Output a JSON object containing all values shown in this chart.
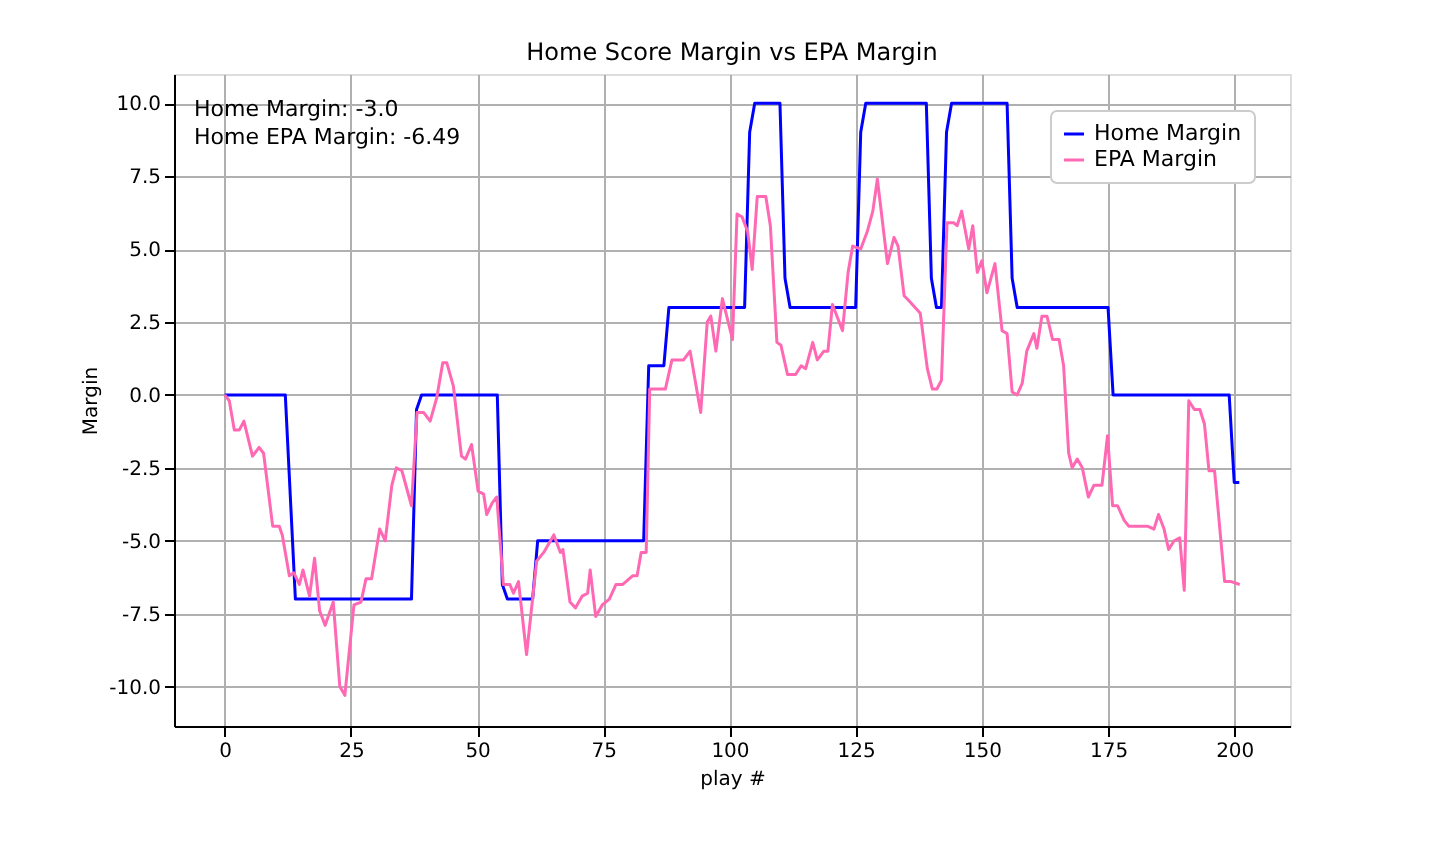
{
  "chart_data": {
    "type": "line",
    "title": "Home Score Margin vs EPA Margin",
    "xlabel": "play #",
    "ylabel": "Margin",
    "annotations": [
      "Home Margin: -3.0",
      "Home EPA Margin: -6.49"
    ],
    "xlim": [
      -10.05,
      211.05
    ],
    "ylim": [
      -11.35,
      11.0
    ],
    "xticks": [
      0,
      25,
      50,
      75,
      100,
      125,
      150,
      175,
      200
    ],
    "yticks": [
      {
        "value": -10,
        "label": "-10.0"
      },
      -7.5,
      {
        "value": -5,
        "label": "-5.0"
      },
      -2.5,
      {
        "value": 0,
        "label": "0.0"
      },
      2.5,
      {
        "value": 5,
        "label": "5.0"
      },
      7.5,
      {
        "value": 10,
        "label": "10.0"
      }
    ],
    "grid": true,
    "legend": "top right",
    "line_style": "solid",
    "marker": "none",
    "series": [
      {
        "name": "Home Margin",
        "color": "#0000ff",
        "x": [
          0,
          12,
          14,
          37,
          38,
          39,
          54,
          55,
          56,
          61,
          62,
          83,
          84,
          87,
          88,
          103,
          104,
          105,
          110,
          111,
          112,
          125,
          126,
          127,
          139,
          140,
          141,
          142,
          143,
          144,
          155,
          156,
          157,
          175,
          176,
          199,
          200,
          201
        ],
        "values": [
          0,
          0,
          -7,
          -7,
          -0.5,
          0,
          0,
          -6.5,
          -7,
          -7,
          -5,
          -5,
          1,
          1,
          3,
          3,
          9,
          10,
          10,
          4,
          3,
          3,
          9,
          10,
          10,
          4,
          3,
          3,
          9,
          10,
          10,
          4,
          3,
          3,
          0,
          0,
          -3,
          -3
        ]
      },
      {
        "name": "EPA Margin",
        "color": "#ff69b4",
        "x": [
          0,
          0.9,
          1.9,
          2.9,
          3.8,
          5.5,
          6.8,
          7.7,
          9.5,
          10.8,
          11.4,
          12.8,
          13.7,
          14.8,
          15.5,
          16.8,
          17.8,
          18.8,
          19.9,
          21.5,
          22.8,
          23.8,
          25.6,
          27,
          28,
          29.1,
          30.7,
          31.8,
          33.1,
          34,
          35.1,
          37,
          38.1,
          39.4,
          40.7,
          42,
          43.2,
          44,
          45.3,
          46.9,
          47.7,
          48.9,
          50.2,
          51.3,
          51.9,
          53,
          53.9,
          55.2,
          56.5,
          57.2,
          58.2,
          59.8,
          61.8,
          63.2,
          65.2,
          66.5,
          67,
          68.4,
          69.5,
          70.8,
          71.9,
          72.4,
          73.5,
          74.8,
          76.2,
          77.5,
          78.8,
          80.8,
          81.7,
          82.5,
          83.5,
          84.2,
          87.3,
          88.6,
          90.9,
          92.2,
          94.3,
          95.6,
          96.3,
          97.3,
          98.6,
          100.6,
          101.5,
          102.5,
          103.6,
          104.5,
          105.5,
          107.2,
          108.1,
          109.4,
          110.2,
          111.5,
          113.1,
          114.2,
          115.1,
          116.5,
          117.4,
          118.7,
          119.5,
          120.4,
          122.4,
          123.5,
          124.4,
          126,
          127.3,
          128.4,
          129.3,
          131.3,
          132.6,
          133.4,
          134.6,
          135.7,
          137.8,
          139.2,
          140.2,
          141.1,
          142,
          143.1,
          144.4,
          145.1,
          146,
          147.4,
          148.2,
          149.1,
          150,
          151,
          152.6,
          154,
          155,
          156,
          157,
          158,
          158.9,
          160.3,
          160.9,
          161.9,
          162.9,
          164,
          165.3,
          166.2,
          167.2,
          167.9,
          168.9,
          169.9,
          171.1,
          172.2,
          173.8,
          174.9,
          175.9,
          176.9,
          178.2,
          179.1,
          180.8,
          182.8,
          184.1,
          185,
          186.1,
          187,
          188.1,
          189.2,
          190.1,
          191,
          192.1,
          193.2,
          194.1,
          195,
          196.1,
          198.1,
          199.4,
          201.1
        ],
        "values": [
          0,
          -0.2,
          -1.2,
          -1.2,
          -0.9,
          -2.1,
          -1.8,
          -2.0,
          -4.5,
          -4.5,
          -4.8,
          -6.2,
          -6.1,
          -6.5,
          -6.0,
          -6.9,
          -5.6,
          -7.4,
          -7.9,
          -7.1,
          -10.0,
          -10.3,
          -7.2,
          -7.1,
          -6.3,
          -6.3,
          -4.6,
          -5.0,
          -3.1,
          -2.5,
          -2.6,
          -3.8,
          -0.6,
          -0.6,
          -0.9,
          -0.1,
          1.1,
          1.1,
          0.3,
          -2.1,
          -2.2,
          -1.7,
          -3.3,
          -3.4,
          -4.1,
          -3.7,
          -3.5,
          -6.5,
          -6.5,
          -6.8,
          -6.4,
          -8.9,
          -5.7,
          -5.4,
          -4.8,
          -5.4,
          -5.3,
          -7.1,
          -7.3,
          -6.9,
          -6.8,
          -6.0,
          -7.6,
          -7.2,
          -7.0,
          -6.5,
          -6.5,
          -6.2,
          -6.2,
          -5.4,
          -5.4,
          0.2,
          0.2,
          1.2,
          1.2,
          1.5,
          -0.6,
          2.5,
          2.7,
          1.5,
          3.3,
          1.9,
          6.2,
          6.1,
          5.6,
          4.3,
          6.8,
          6.8,
          5.8,
          1.8,
          1.7,
          0.7,
          0.7,
          1.0,
          0.9,
          1.8,
          1.2,
          1.5,
          1.5,
          3.1,
          2.2,
          4.2,
          5.1,
          5.0,
          5.6,
          6.3,
          7.4,
          4.5,
          5.4,
          5.1,
          3.4,
          3.2,
          2.8,
          0.9,
          0.2,
          0.2,
          0.5,
          5.9,
          5.9,
          5.8,
          6.3,
          5.0,
          5.8,
          4.2,
          4.6,
          3.5,
          4.5,
          2.2,
          2.1,
          0.1,
          0.0,
          0.4,
          1.5,
          2.1,
          1.6,
          2.7,
          2.7,
          1.9,
          1.9,
          1.0,
          -2.0,
          -2.5,
          -2.2,
          -2.5,
          -3.5,
          -3.1,
          -3.1,
          -1.4,
          -3.8,
          -3.8,
          -4.3,
          -4.5,
          -4.5,
          -4.5,
          -4.6,
          -4.1,
          -4.6,
          -5.3,
          -5.0,
          -4.9,
          -6.7,
          -0.2,
          -0.5,
          -0.5,
          -1.0,
          -2.6,
          -2.6,
          -6.4,
          -6.4,
          -6.5
        ]
      }
    ]
  }
}
